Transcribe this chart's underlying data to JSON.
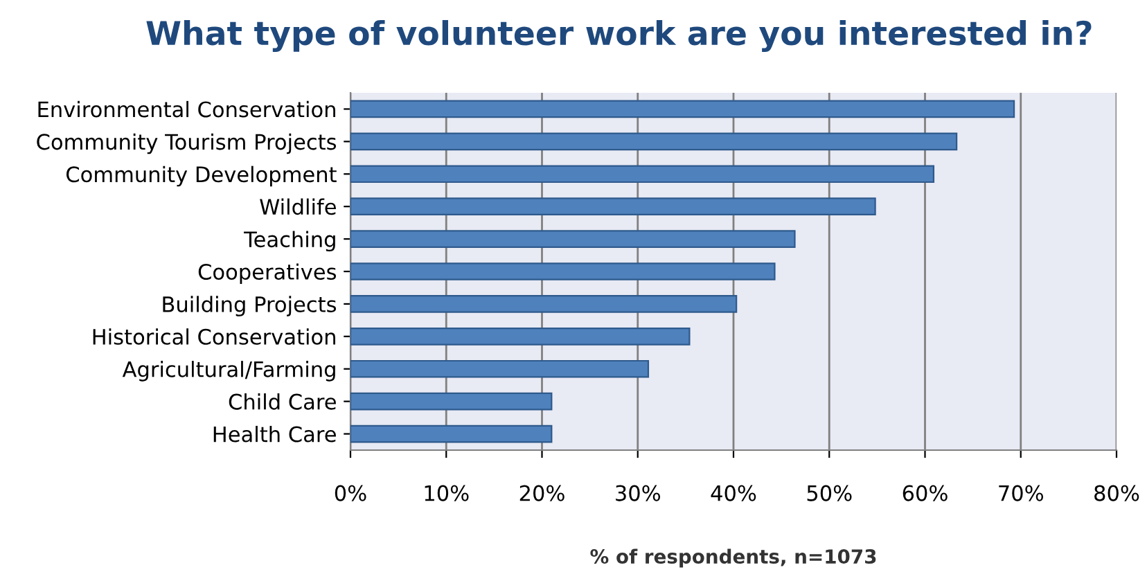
{
  "chart_data": {
    "type": "bar",
    "orientation": "horizontal",
    "title": "What type of volunteer work are you interested in?",
    "xlabel": "% of respondents, n=1073",
    "categories": [
      "Environmental Conservation",
      "Community Tourism Projects",
      "Community Development",
      "Wildlife",
      "Teaching",
      "Cooperatives",
      "Building Projects",
      "Historical Conservation",
      "Agricultural/Farming",
      "Child Care",
      "Health Care"
    ],
    "values": [
      69.3,
      63.3,
      60.9,
      54.8,
      46.4,
      44.3,
      40.3,
      35.4,
      31.1,
      21.0,
      21.0
    ],
    "color": "#4f81bd",
    "xlim": [
      0,
      80
    ],
    "xticks": [
      {
        "value": 0,
        "label": "0%"
      },
      {
        "value": 10,
        "label": "10%"
      },
      {
        "value": 20,
        "label": "20%"
      },
      {
        "value": 30,
        "label": "30%"
      },
      {
        "value": 40,
        "label": "40%"
      },
      {
        "value": 50,
        "label": "50%"
      },
      {
        "value": 60,
        "label": "60%"
      },
      {
        "value": 70,
        "label": "70%"
      },
      {
        "value": 80,
        "label": "80%"
      }
    ],
    "grid": "x"
  }
}
